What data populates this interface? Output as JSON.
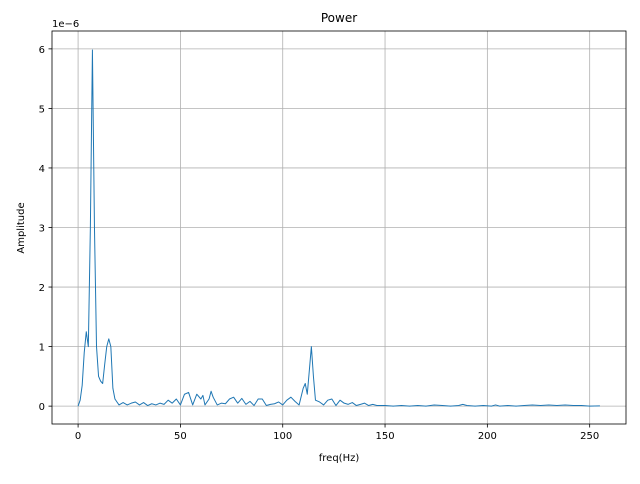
{
  "chart_data": {
    "type": "line",
    "title": "Power",
    "xlabel": "freq(Hz)",
    "ylabel": "Amplitude",
    "y_offset_text": "1e−6",
    "color": "#1f77b4",
    "grid": true,
    "xlim": [
      -12.75,
      267.75
    ],
    "ylim": [
      -0.3,
      6.3
    ],
    "xticks": [
      0,
      50,
      100,
      150,
      200,
      250
    ],
    "yticks": [
      0,
      1,
      2,
      3,
      4,
      5,
      6
    ],
    "x": [
      0,
      1,
      2,
      3,
      4,
      5,
      6,
      7,
      8,
      9,
      10,
      11,
      12,
      13,
      14,
      15,
      16,
      17,
      18,
      19,
      20,
      22,
      24,
      26,
      28,
      30,
      32,
      34,
      36,
      38,
      40,
      42,
      44,
      46,
      48,
      50,
      52,
      54,
      56,
      58,
      60,
      61,
      62,
      64,
      65,
      66,
      68,
      70,
      72,
      74,
      76,
      78,
      80,
      82,
      84,
      86,
      88,
      90,
      92,
      94,
      96,
      98,
      100,
      102,
      104,
      106,
      108,
      110,
      111,
      112,
      113,
      114,
      115,
      116,
      118,
      120,
      122,
      124,
      126,
      128,
      130,
      132,
      134,
      136,
      138,
      140,
      142,
      144,
      146,
      150,
      154,
      158,
      162,
      166,
      170,
      174,
      178,
      182,
      186,
      188,
      190,
      194,
      198,
      202,
      204,
      206,
      210,
      214,
      218,
      222,
      226,
      230,
      234,
      238,
      242,
      246,
      250,
      255
    ],
    "values": [
      0.0,
      0.1,
      0.35,
      0.9,
      1.25,
      1.0,
      3.0,
      5.98,
      3.0,
      1.0,
      0.5,
      0.42,
      0.38,
      0.7,
      1.0,
      1.13,
      1.0,
      0.3,
      0.12,
      0.07,
      0.02,
      0.06,
      0.02,
      0.05,
      0.07,
      0.02,
      0.06,
      0.01,
      0.04,
      0.02,
      0.05,
      0.03,
      0.1,
      0.05,
      0.12,
      0.02,
      0.2,
      0.23,
      0.02,
      0.2,
      0.12,
      0.18,
      0.02,
      0.12,
      0.25,
      0.15,
      0.02,
      0.05,
      0.04,
      0.12,
      0.15,
      0.05,
      0.13,
      0.03,
      0.08,
      0.01,
      0.12,
      0.12,
      0.01,
      0.03,
      0.04,
      0.07,
      0.02,
      0.1,
      0.15,
      0.08,
      0.02,
      0.3,
      0.38,
      0.2,
      0.6,
      1.0,
      0.5,
      0.1,
      0.07,
      0.02,
      0.1,
      0.12,
      0.01,
      0.1,
      0.05,
      0.03,
      0.06,
      0.01,
      0.03,
      0.05,
      0.01,
      0.03,
      0.01,
      0.01,
      0.0,
      0.01,
      0.0,
      0.01,
      0.0,
      0.02,
      0.01,
      0.0,
      0.01,
      0.03,
      0.01,
      0.0,
      0.01,
      0.0,
      0.02,
      0.0,
      0.01,
      0.0,
      0.01,
      0.02,
      0.01,
      0.02,
      0.01,
      0.02,
      0.01,
      0.01,
      0.0,
      0.005
    ]
  }
}
